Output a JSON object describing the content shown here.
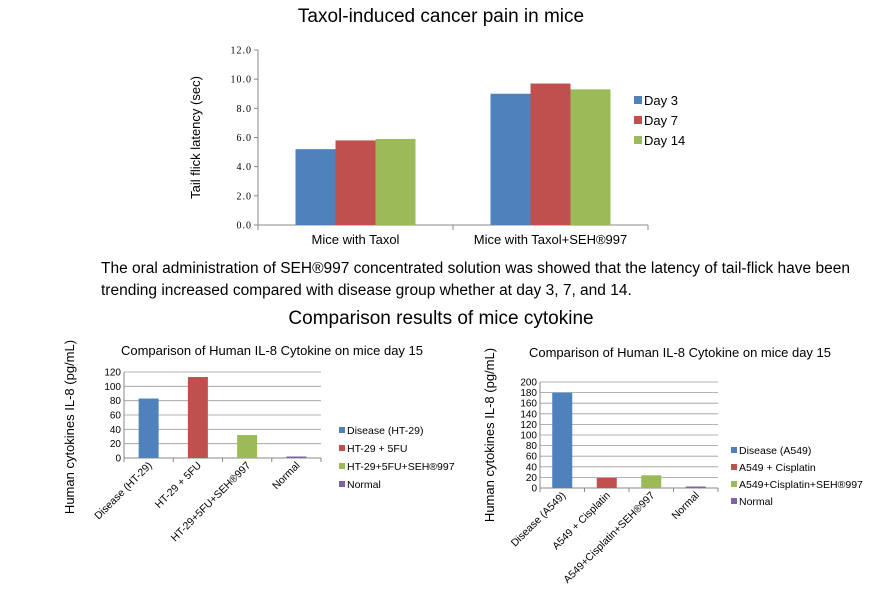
{
  "page": {
    "top_title": "Taxol-induced cancer pain in mice",
    "description": "The oral administration of SEH®997 concentrated solution was showed that the latency of tail-flick have been trending increased compared with disease group whether at day 3, 7, and 14.",
    "section_title": "Comparison results of mice cytokine"
  },
  "colors": {
    "blue": "#4f81bd",
    "red": "#c0504d",
    "green": "#9bbb59",
    "purple": "#8064a2",
    "axis": "#888888",
    "grid": "#9a9a9a"
  },
  "chart_data": [
    {
      "type": "bar",
      "title": "",
      "ylabel": "Tail flick latency (sec)",
      "xlabel": "",
      "categories": [
        "Mice with Taxol",
        "Mice with Taxol+SEH®997"
      ],
      "series": [
        {
          "name": "Day 3",
          "color": "#4f81bd",
          "values": [
            5.2,
            9.0
          ]
        },
        {
          "name": "Day 7",
          "color": "#c0504d",
          "values": [
            5.8,
            9.7
          ]
        },
        {
          "name": "Day 14",
          "color": "#9bbb59",
          "values": [
            5.9,
            9.3
          ]
        }
      ],
      "ylim": [
        0,
        12
      ],
      "yticks": [
        "0.0",
        "2.0",
        "4.0",
        "6.0",
        "8.0",
        "10.0",
        "12.0"
      ],
      "grid": false,
      "legend": "right"
    },
    {
      "type": "bar",
      "title": "Comparison of Human IL-8 Cytokine on mice day 15",
      "ylabel": "Human cytokines IL-8 (pg/mL)",
      "xlabel": "",
      "categories": [
        "Disease (HT-29)",
        "HT-29 + 5FU",
        "HT-29+5FU+SEH®997",
        "Normal"
      ],
      "values": [
        83,
        113,
        32,
        1
      ],
      "colors": [
        "#4f81bd",
        "#c0504d",
        "#9bbb59",
        "#8064a2"
      ],
      "legend_entries": [
        "Disease (HT-29)",
        "HT-29 + 5FU",
        "HT-29+5FU+SEH®997",
        "Normal"
      ],
      "ylim": [
        0,
        120
      ],
      "yticks": [
        "0",
        "20",
        "40",
        "60",
        "80",
        "100",
        "120"
      ],
      "grid": true,
      "legend": "right"
    },
    {
      "type": "bar",
      "title": "Comparison of Human IL-8 Cytokine on mice day 15",
      "ylabel": "Human cytokines IL-8 (pg/mL)",
      "xlabel": "",
      "categories": [
        "Disease (A549)",
        "A549 + Cisplatin",
        "A549+Cisplatin+SEH®997",
        "Normal"
      ],
      "values": [
        180,
        19,
        24,
        2
      ],
      "colors": [
        "#4f81bd",
        "#c0504d",
        "#9bbb59",
        "#8064a2"
      ],
      "legend_entries": [
        "Disease (A549)",
        "A549 + Cisplatin",
        "A549+Cisplatin+SEH®997",
        "Normal"
      ],
      "ylim": [
        0,
        200
      ],
      "yticks": [
        "0",
        "20",
        "40",
        "60",
        "80",
        "100",
        "120",
        "140",
        "160",
        "180",
        "200"
      ],
      "grid": true,
      "legend": "right"
    }
  ]
}
